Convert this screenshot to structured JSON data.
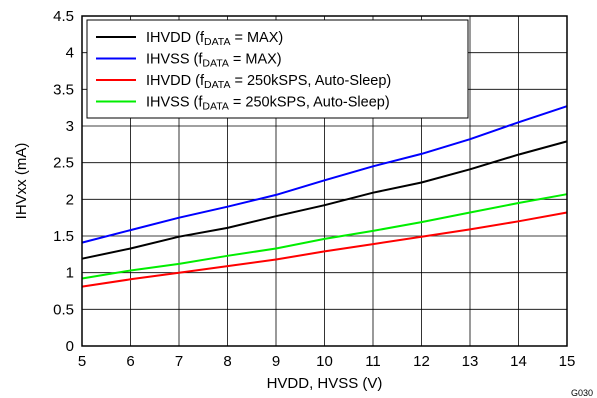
{
  "chart_data": {
    "type": "line",
    "xlabel": "HVDD, HVSS (V)",
    "ylabel": "IHVxx (mA)",
    "xlim": [
      5,
      15
    ],
    "ylim": [
      0,
      4.5
    ],
    "x_ticks": [
      5,
      6,
      7,
      8,
      9,
      10,
      11,
      12,
      13,
      14,
      15
    ],
    "y_ticks": [
      0,
      0.5,
      1,
      1.5,
      2,
      2.5,
      3,
      3.5,
      4,
      4.5
    ],
    "x_tick_labels": [
      "5",
      "6",
      "7",
      "8",
      "9",
      "10",
      "11",
      "12",
      "13",
      "14",
      "15"
    ],
    "y_tick_labels": [
      "0",
      "0.5",
      "1",
      "1.5",
      "2",
      "2.5",
      "3",
      "3.5",
      "4",
      "4.5"
    ],
    "grid": true,
    "legend_position": "top-left",
    "figure_code": "G030",
    "x": [
      5,
      6,
      7,
      8,
      9,
      10,
      11,
      12,
      13,
      14,
      15
    ],
    "series": [
      {
        "name": "IHVDD (fDATA = MAX)",
        "legend": {
          "base": "IHVDD (f",
          "sub": "DATA",
          "rest": " = MAX)"
        },
        "color": "#000000",
        "values": [
          1.19,
          1.33,
          1.49,
          1.61,
          1.77,
          1.92,
          2.09,
          2.23,
          2.41,
          2.61,
          2.79
        ]
      },
      {
        "name": "IHVSS (fDATA = MAX)",
        "legend": {
          "base": "IHVSS (f",
          "sub": "DATA",
          "rest": " = MAX)"
        },
        "color": "#0000ff",
        "values": [
          1.41,
          1.58,
          1.75,
          1.9,
          2.06,
          2.26,
          2.45,
          2.62,
          2.82,
          3.05,
          3.27
        ]
      },
      {
        "name": "IHVDD (fDATA = 250kSPS, Auto-Sleep)",
        "legend": {
          "base": "IHVDD (f",
          "sub": "DATA",
          "rest": " = 250kSPS, Auto-Sleep)"
        },
        "color": "#ff0000",
        "values": [
          0.81,
          0.91,
          1.0,
          1.09,
          1.18,
          1.29,
          1.39,
          1.49,
          1.59,
          1.7,
          1.82
        ]
      },
      {
        "name": "IHVSS (fDATA = 250kSPS, Auto-Sleep)",
        "legend": {
          "base": "IHVSS (f",
          "sub": "DATA",
          "rest": " = 250kSPS, Auto-Sleep)"
        },
        "color": "#00ee00",
        "values": [
          0.92,
          1.03,
          1.12,
          1.23,
          1.33,
          1.46,
          1.57,
          1.69,
          1.82,
          1.95,
          2.07
        ]
      }
    ]
  }
}
